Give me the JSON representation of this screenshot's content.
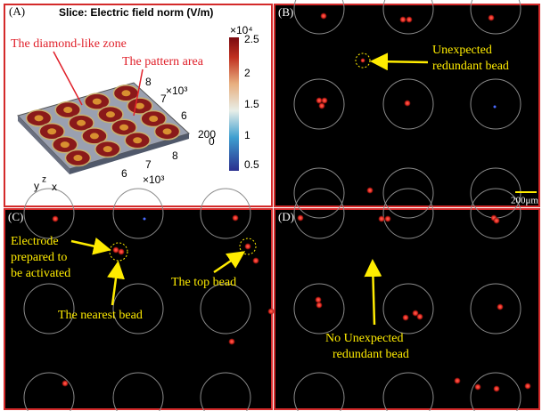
{
  "panels": [
    {
      "label": "(A)",
      "title": "Slice: Electric field norm (V/m)",
      "annotations": [
        "The diamond-like zone",
        "The pattern area"
      ],
      "colorbar": {
        "exponent": "×10⁴",
        "ticks": [
          "2.5",
          "2",
          "1.5",
          "1",
          "0.5"
        ]
      },
      "axis_texts": [
        "8",
        "×10³",
        "7",
        "6",
        "200",
        "0",
        "6",
        "7",
        "8",
        "×10³"
      ],
      "axis_letters": [
        "y",
        "z",
        "x"
      ]
    },
    {
      "label": "(B)",
      "annotations": [
        "Unexpected",
        "redundant bead"
      ],
      "scale_bar": "200μm"
    },
    {
      "label": "(C)",
      "annotations": [
        "Electrode",
        "prepared to",
        "be activated",
        "The nearest bead",
        "The top bead"
      ]
    },
    {
      "label": "(D)",
      "annotations": [
        "No Unexpected",
        "redundant bead"
      ]
    }
  ]
}
